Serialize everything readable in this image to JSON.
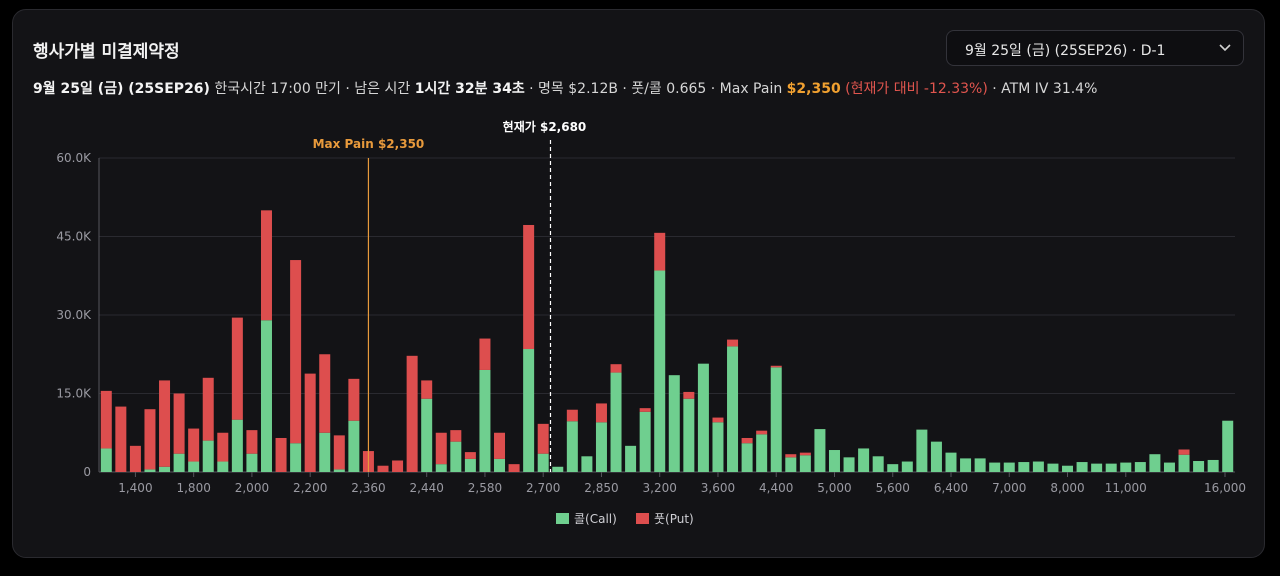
{
  "panel": {
    "title": "행사가별 미결제약정",
    "expiry_select": "9월 25일 (금) (25SEP26) · D-1"
  },
  "info": {
    "date": "9월 25일 (금) (25SEP26)",
    "expiry_text": "한국시간 17:00 만기 · 남은 시간",
    "remaining": "1시간 32분 34초",
    "notional_text": "· 명목 $2.12B · 풋/콜 0.665 · Max Pain",
    "max_pain_value": "$2,350",
    "vs_spot": "(현재가 대비 -12.33%)",
    "atm_iv": "· ATM IV 31.4%"
  },
  "colors": {
    "call": "#6fcf8f",
    "put": "#dd4e4e",
    "max_pain": "#e89a3c",
    "spot": "#ffffff"
  },
  "chart_data": {
    "type": "bar",
    "stacked": true,
    "ylim": [
      0,
      60000
    ],
    "y_ticks": [
      "0",
      "15.0K",
      "30.0K",
      "45.0K",
      "60.0K"
    ],
    "x_tick_labels": [
      "1,400",
      "1,800",
      "2,000",
      "2,200",
      "2,360",
      "2,440",
      "2,580",
      "2,700",
      "2,850",
      "3,200",
      "3,600",
      "4,400",
      "5,000",
      "5,600",
      "6,400",
      "7,000",
      "8,000",
      "11,000",
      "16,000"
    ],
    "grid": true,
    "legend_position": "bottom",
    "max_pain_label": "Max Pain $2,350",
    "spot_label": "현재가 $2,680",
    "series": [
      {
        "name": "콜(Call)",
        "values": [
          4500,
          0,
          0,
          500,
          1000,
          3500,
          2000,
          6000,
          2000,
          10000,
          3500,
          29000,
          0,
          5500,
          0,
          7500,
          500,
          9800,
          0,
          0,
          0,
          0,
          14000,
          1500,
          5800,
          2500,
          19500,
          2500,
          0,
          23500,
          3500,
          1000,
          9700,
          3000,
          9500,
          19000,
          5000,
          11500,
          38500,
          18500,
          14000,
          20700,
          9500,
          24000,
          5500,
          7200,
          20000,
          2800,
          3200,
          8200,
          4200,
          2800,
          4500,
          3000,
          1500,
          2000,
          8100,
          5800,
          3700,
          2600,
          2600,
          1800,
          1800,
          1900,
          2000,
          1600,
          1200,
          1900,
          1600,
          1600,
          1800,
          1900,
          3400,
          1800,
          3300,
          2100,
          2300,
          9800
        ]
      },
      {
        "name": "풋(Put)",
        "values": [
          11000,
          12500,
          5000,
          11500,
          16500,
          11500,
          6300,
          12000,
          5500,
          19500,
          4500,
          21000,
          6500,
          35000,
          18800,
          15000,
          6500,
          8000,
          4000,
          1200,
          2200,
          22200,
          3500,
          6000,
          2200,
          1300,
          6000,
          5000,
          1500,
          23700,
          5700,
          0,
          2200,
          0,
          3600,
          1600,
          0,
          700,
          7200,
          0,
          1300,
          0,
          900,
          1300,
          1000,
          700,
          300,
          600,
          500,
          0,
          0,
          0,
          0,
          0,
          0,
          0,
          0,
          0,
          0,
          0,
          0,
          0,
          0,
          0,
          0,
          0,
          0,
          0,
          0,
          0,
          0,
          0,
          0,
          0,
          1000,
          0,
          0,
          0,
          0
        ]
      }
    ]
  }
}
